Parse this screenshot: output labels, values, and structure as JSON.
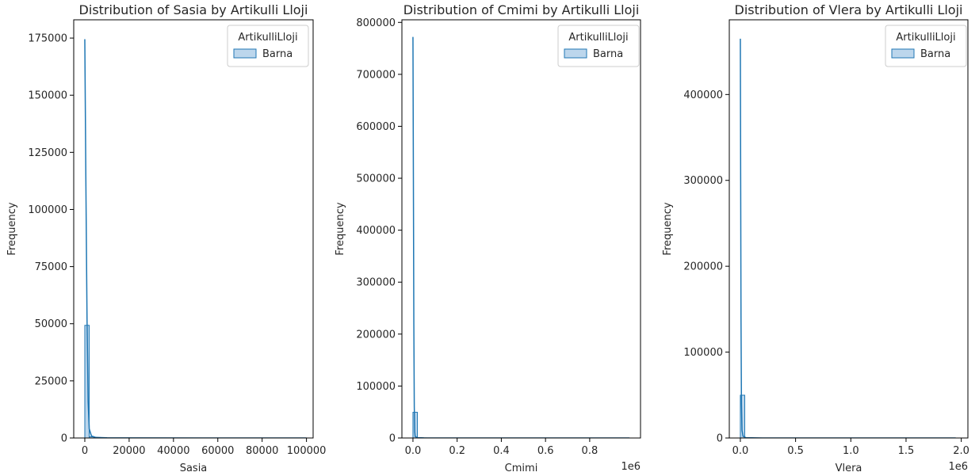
{
  "chart_data": [
    {
      "type": "histogram",
      "title": "Distribution of Sasia by Artikulli Lloji",
      "xlabel": "Sasia",
      "ylabel": "Frequency",
      "xlim": [
        -5000,
        103000
      ],
      "ylim": [
        0,
        183000
      ],
      "x_ticks": [
        0,
        20000,
        40000,
        60000,
        80000,
        100000
      ],
      "x_tick_labels": [
        "0",
        "20000",
        "40000",
        "60000",
        "80000",
        "100000"
      ],
      "y_ticks": [
        0,
        25000,
        50000,
        75000,
        100000,
        125000,
        150000,
        175000
      ],
      "y_tick_labels": [
        "0",
        "25000",
        "50000",
        "75000",
        100000,
        "125000",
        "150000",
        "175000"
      ],
      "offset_label": "",
      "legend": {
        "title": "ArtikulliLloji",
        "entries": [
          "Barna"
        ],
        "placement": "upper right"
      },
      "series": [
        {
          "name": "Barna",
          "bins": [
            [
              0,
              2000,
              49300
            ],
            [
              2000,
              4000,
              500
            ],
            [
              4000,
              6000,
              150
            ],
            [
              6000,
              8000,
              50
            ],
            [
              8000,
              10000,
              30
            ]
          ],
          "kde": [
            [
              0,
              174500
            ],
            [
              500,
              110000
            ],
            [
              1000,
              52000
            ],
            [
              1500,
              16000
            ],
            [
              2000,
              4000
            ],
            [
              3000,
              900
            ],
            [
              5000,
              250
            ],
            [
              10000,
              100
            ],
            [
              20000,
              40
            ],
            [
              60000,
              10
            ],
            [
              100000,
              0
            ]
          ]
        }
      ]
    },
    {
      "type": "histogram",
      "title": "Distribution of Cmimi by Artikulli Lloji",
      "xlabel": "Cmimi",
      "ylabel": "Frequency",
      "xlim": [
        -50000,
        1030000
      ],
      "ylim": [
        0,
        805000
      ],
      "x_ticks": [
        0,
        200000,
        400000,
        600000,
        800000
      ],
      "x_tick_labels": [
        "0.0",
        "0.2",
        "0.4",
        "0.6",
        "0.8"
      ],
      "y_ticks": [
        0,
        100000,
        200000,
        300000,
        400000,
        500000,
        600000,
        700000,
        800000
      ],
      "y_tick_labels": [
        "0",
        "100000",
        "200000",
        "300000",
        "400000",
        "500000",
        "600000",
        "700000",
        "800000"
      ],
      "offset_label": "1e6",
      "legend": {
        "title": "ArtikulliLloji",
        "entries": [
          "Barna"
        ],
        "placement": "upper right"
      },
      "series": [
        {
          "name": "Barna",
          "bins": [
            [
              0,
              20000,
              49500
            ],
            [
              20000,
              40000,
              300
            ],
            [
              40000,
              60000,
              80
            ]
          ],
          "kde": [
            [
              0,
              772000
            ],
            [
              2000,
              500000
            ],
            [
              4000,
              220000
            ],
            [
              6000,
              60000
            ],
            [
              8000,
              12000
            ],
            [
              10000,
              3000
            ],
            [
              20000,
              500
            ],
            [
              50000,
              100
            ],
            [
              200000,
              20
            ],
            [
              980000,
              0
            ]
          ]
        }
      ]
    },
    {
      "type": "histogram",
      "title": "Distribution of Vlera by Artikulli Lloji",
      "xlabel": "Vlera",
      "ylabel": "Frequency",
      "xlim": [
        -100000,
        2060000
      ],
      "ylim": [
        0,
        487000
      ],
      "x_ticks": [
        0,
        500000,
        1000000,
        1500000,
        2000000
      ],
      "x_tick_labels": [
        "0.0",
        "0.5",
        "1.0",
        "1.5",
        "2.0"
      ],
      "y_ticks": [
        0,
        100000,
        200000,
        300000,
        400000
      ],
      "y_tick_labels": [
        "0",
        "100000",
        "200000",
        "300000",
        "400000"
      ],
      "offset_label": "1e6",
      "legend": {
        "title": "ArtikulliLloji",
        "entries": [
          "Barna"
        ],
        "placement": "upper right"
      },
      "series": [
        {
          "name": "Barna",
          "bins": [
            [
              0,
              40000,
              49800
            ],
            [
              40000,
              80000,
              300
            ],
            [
              80000,
              120000,
              60
            ]
          ],
          "kde": [
            [
              0,
              465000
            ],
            [
              3000,
              300000
            ],
            [
              6000,
              140000
            ],
            [
              10000,
              40000
            ],
            [
              15000,
              9000
            ],
            [
              25000,
              2000
            ],
            [
              50000,
              400
            ],
            [
              200000,
              50
            ],
            [
              1950000,
              0
            ]
          ]
        }
      ]
    }
  ],
  "style": {
    "series_color": "#1f77b4",
    "series_fill": "#bcd6ec",
    "axis_color": "#000000",
    "text_color": "#262626"
  }
}
